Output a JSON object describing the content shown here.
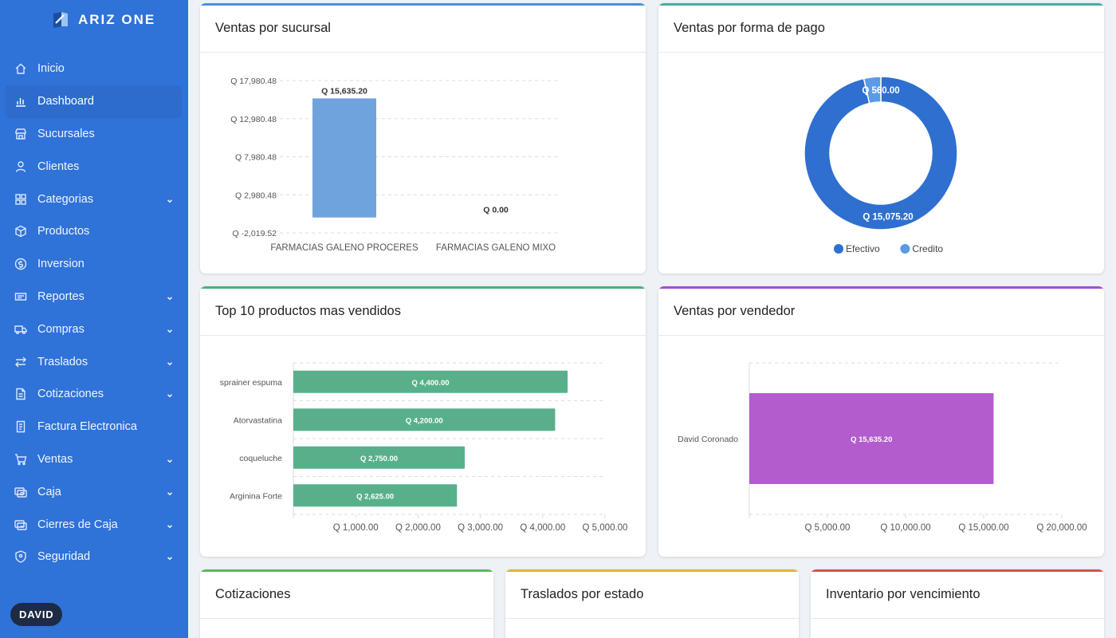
{
  "brand": {
    "name": "ARIZ ONE"
  },
  "sidebar": {
    "items": [
      {
        "label": "Inicio",
        "icon": "home-icon",
        "active": false,
        "chevron": false
      },
      {
        "label": "Dashboard",
        "icon": "chart-icon",
        "active": true,
        "chevron": false
      },
      {
        "label": "Sucursales",
        "icon": "store-icon",
        "active": false,
        "chevron": false
      },
      {
        "label": "Clientes",
        "icon": "user-icon",
        "active": false,
        "chevron": false
      },
      {
        "label": "Categorias",
        "icon": "grid-icon",
        "active": false,
        "chevron": true
      },
      {
        "label": "Productos",
        "icon": "box-icon",
        "active": false,
        "chevron": false
      },
      {
        "label": "Inversion",
        "icon": "coin-icon",
        "active": false,
        "chevron": false
      },
      {
        "label": "Reportes",
        "icon": "report-icon",
        "active": false,
        "chevron": true
      },
      {
        "label": "Compras",
        "icon": "truck-icon",
        "active": false,
        "chevron": true
      },
      {
        "label": "Traslados",
        "icon": "transfer-icon",
        "active": false,
        "chevron": true
      },
      {
        "label": "Cotizaciones",
        "icon": "document-icon",
        "active": false,
        "chevron": true
      },
      {
        "label": "Factura Electronica",
        "icon": "invoice-icon",
        "active": false,
        "chevron": false
      },
      {
        "label": "Ventas",
        "icon": "cart-icon",
        "active": false,
        "chevron": true
      },
      {
        "label": "Caja",
        "icon": "cash-icon",
        "active": false,
        "chevron": true
      },
      {
        "label": "Cierres de Caja",
        "icon": "cash-close-icon",
        "active": false,
        "chevron": true
      },
      {
        "label": "Seguridad",
        "icon": "shield-icon",
        "active": false,
        "chevron": true
      }
    ],
    "user": "DAVID"
  },
  "cards": {
    "sucursal": {
      "title": "Ventas por sucursal",
      "accent": "#4a90d9"
    },
    "pago": {
      "title": "Ventas por forma de pago",
      "accent": "#4aa9a0"
    },
    "top10": {
      "title": "Top 10 productos mas vendidos",
      "accent": "#4caf7c"
    },
    "vendedor": {
      "title": "Ventas por vendedor",
      "accent": "#a44ed0"
    },
    "cotizaciones": {
      "title": "Cotizaciones",
      "accent": "#5cb85c"
    },
    "traslados": {
      "title": "Traslados por estado",
      "accent": "#e0b43a"
    },
    "inventario": {
      "title": "Inventario por vencimiento",
      "accent": "#d9534f"
    }
  },
  "chart_data": [
    {
      "type": "bar",
      "categories": [
        "FARMACIAS GALENO PROCERES",
        "FARMACIAS GALENO MIXO"
      ],
      "values": [
        15635.2,
        0.0
      ],
      "value_labels": [
        "Q 15,635.20",
        "Q 0.00"
      ],
      "yticks": [
        "Q 17,980.48",
        "Q 12,980.48",
        "Q 7,980.48",
        "Q 2,980.48",
        "Q -2,019.52"
      ],
      "ylim": [
        -2019.52,
        17980.48
      ],
      "color": "#6fa3dd",
      "grid": true
    },
    {
      "type": "pie",
      "donut": true,
      "categories": [
        "Efectivo",
        "Credito"
      ],
      "values": [
        15075.2,
        560.0
      ],
      "value_labels": [
        "Q 15,075.20",
        "Q 560.00"
      ],
      "colors": [
        "#2f6fd0",
        "#5b9be6"
      ],
      "legend": "bottom"
    },
    {
      "type": "bar",
      "orientation": "horizontal",
      "categories": [
        "sprainer espuma",
        "Atorvastatina",
        "coqueluche",
        "Arginina Forte"
      ],
      "values": [
        4400,
        4200,
        2750,
        2625
      ],
      "value_labels": [
        "Q 4,400.00",
        "Q 4,200.00",
        "Q 2,750.00",
        "Q 2,625.00"
      ],
      "xticks": [
        "Q 1,000.00",
        "Q 2,000.00",
        "Q 3,000.00",
        "Q 4,000.00",
        "Q 5,000.00"
      ],
      "xlim": [
        0,
        5000
      ],
      "color": "#58b08a",
      "grid": true
    },
    {
      "type": "bar",
      "orientation": "horizontal",
      "categories": [
        "David Coronado"
      ],
      "values": [
        15635.2
      ],
      "value_labels": [
        "Q 15,635.20"
      ],
      "xticks": [
        "Q 5,000.00",
        "Q 10,000.00",
        "Q 15,000.00",
        "Q 20,000.00"
      ],
      "xlim": [
        0,
        20000
      ],
      "color": "#b25ccd",
      "grid": true
    }
  ]
}
